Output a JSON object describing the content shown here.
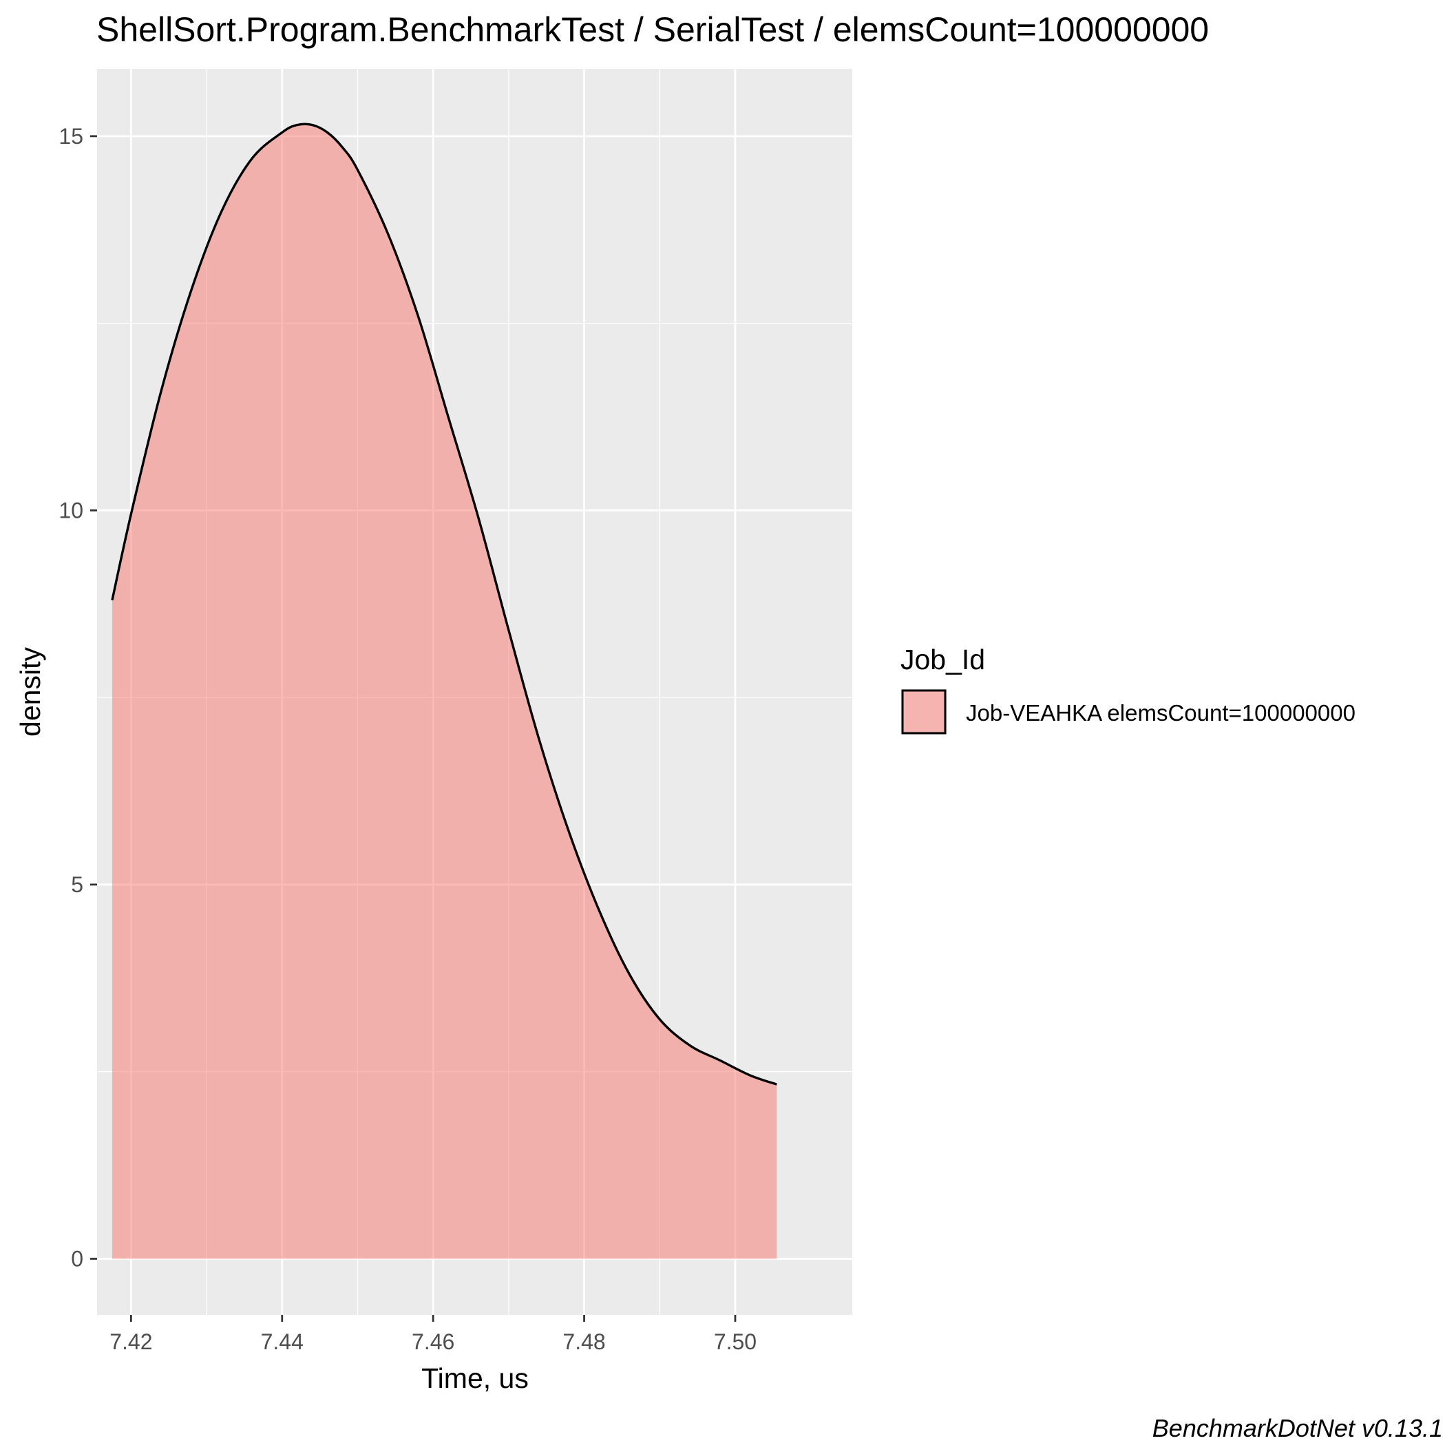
{
  "chart_data": {
    "type": "area",
    "title": "ShellSort.Program.BenchmarkTest / SerialTest / elemsCount=100000000",
    "xlabel": "Time, us",
    "ylabel": "density",
    "xlim": [
      7.4155,
      7.5155
    ],
    "ylim": [
      -0.75,
      15.9
    ],
    "x_ticks": [
      7.42,
      7.44,
      7.46,
      7.48,
      7.5
    ],
    "x_tick_labels": [
      "7.42",
      "7.44",
      "7.46",
      "7.48",
      "7.50"
    ],
    "y_ticks": [
      0,
      5,
      10,
      15
    ],
    "y_tick_labels": [
      "0",
      "5",
      "10",
      "15"
    ],
    "grid": true,
    "legend": {
      "title": "Job_Id",
      "position": "right"
    },
    "series": [
      {
        "name": "Job-VEAHKA elemsCount=100000000",
        "fill": "#F8766D",
        "fill_opacity": 0.5,
        "stroke": "#000000",
        "x": [
          7.4175,
          7.42,
          7.424,
          7.428,
          7.432,
          7.436,
          7.44,
          7.442,
          7.444,
          7.446,
          7.448,
          7.45,
          7.454,
          7.458,
          7.462,
          7.466,
          7.47,
          7.474,
          7.478,
          7.482,
          7.486,
          7.49,
          7.494,
          7.498,
          7.502,
          7.5055
        ],
        "y": [
          8.8,
          9.95,
          11.6,
          12.95,
          14.0,
          14.7,
          15.05,
          15.15,
          15.15,
          15.05,
          14.85,
          14.55,
          13.7,
          12.6,
          11.25,
          9.9,
          8.4,
          6.95,
          5.7,
          4.65,
          3.8,
          3.2,
          2.85,
          2.65,
          2.45,
          2.33
        ]
      }
    ],
    "caption": "BenchmarkDotNet v0.13.1"
  }
}
